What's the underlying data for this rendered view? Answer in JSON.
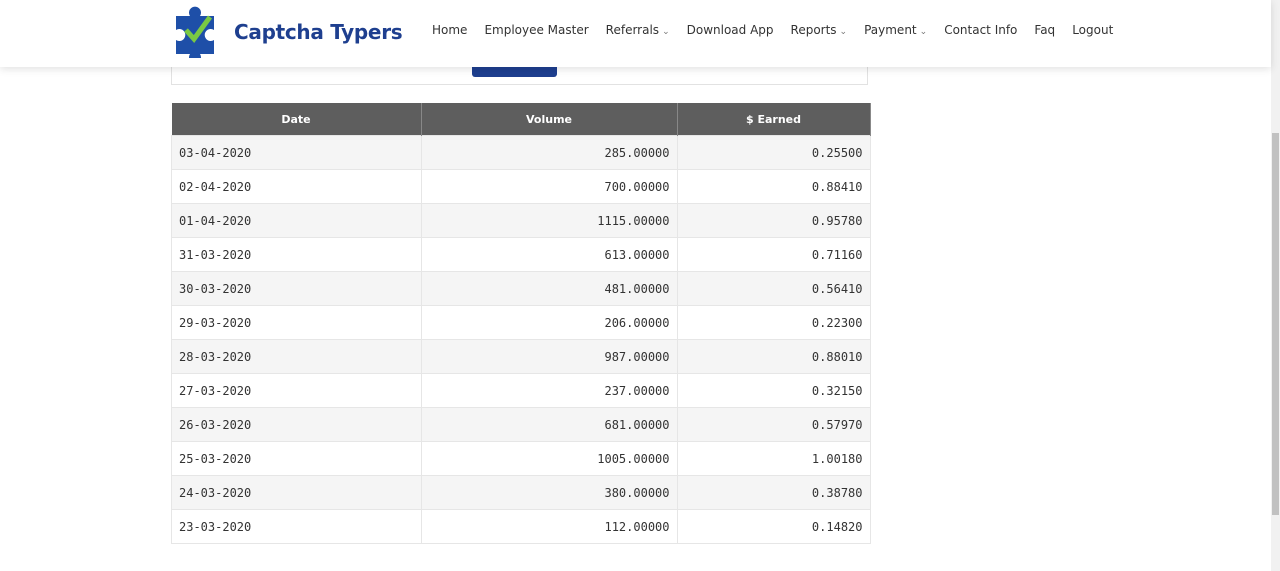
{
  "header": {
    "logo_text": "Captcha Typers",
    "nav": [
      "Home",
      "Employee Master",
      "Referrals",
      "Download App",
      "Reports",
      "Payment",
      "Contact Info",
      "Faq",
      "Logout"
    ]
  },
  "table": {
    "columns": [
      "Date",
      "Volume",
      "$ Earned"
    ],
    "rows": [
      [
        "03-04-2020",
        "285.00000",
        "0.25500"
      ],
      [
        "02-04-2020",
        "700.00000",
        "0.88410"
      ],
      [
        "01-04-2020",
        "1115.00000",
        "0.95780"
      ],
      [
        "31-03-2020",
        "613.00000",
        "0.71160"
      ],
      [
        "30-03-2020",
        "481.00000",
        "0.56410"
      ],
      [
        "29-03-2020",
        "206.00000",
        "0.22300"
      ],
      [
        "28-03-2020",
        "987.00000",
        "0.88010"
      ],
      [
        "27-03-2020",
        "237.00000",
        "0.32150"
      ],
      [
        "26-03-2020",
        "681.00000",
        "0.57970"
      ],
      [
        "25-03-2020",
        "1005.00000",
        "1.00180"
      ],
      [
        "24-03-2020",
        "380.00000",
        "0.38780"
      ],
      [
        "23-03-2020",
        "112.00000",
        "0.14820"
      ]
    ]
  }
}
